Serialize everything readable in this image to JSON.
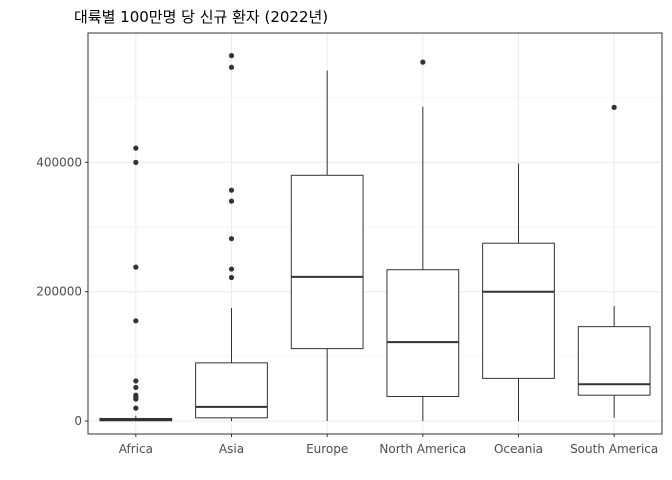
{
  "chart_data": {
    "type": "boxplot",
    "title": "대륙별 100만명 당 신규 환자 (2022년)",
    "xlabel": "",
    "ylabel": "",
    "ylim": [
      -20000,
      600000
    ],
    "yticks": [
      0,
      200000,
      400000
    ],
    "ytick_labels": [
      "0",
      "200000",
      "400000"
    ],
    "grid": true,
    "categories": [
      "Africa",
      "Asia",
      "Europe",
      "North America",
      "Oceania",
      "South America"
    ],
    "boxes": [
      {
        "category": "Africa",
        "whisker_low": 0,
        "q1": 500,
        "median": 2000,
        "q3": 4000,
        "whisker_high": 8000,
        "outliers": [
          422000,
          400000,
          238000,
          155000,
          62000,
          52000,
          40000,
          37000,
          34000,
          20000
        ]
      },
      {
        "category": "Asia",
        "whisker_low": 0,
        "q1": 5000,
        "median": 22000,
        "q3": 90000,
        "whisker_high": 175000,
        "outliers": [
          565000,
          547000,
          357000,
          340000,
          282000,
          235000,
          222000
        ]
      },
      {
        "category": "Europe",
        "whisker_low": 0,
        "q1": 112000,
        "median": 223000,
        "q3": 380000,
        "whisker_high": 542000,
        "outliers": []
      },
      {
        "category": "North America",
        "whisker_low": 0,
        "q1": 38000,
        "median": 122000,
        "q3": 234000,
        "whisker_high": 486000,
        "outliers": [
          555000
        ]
      },
      {
        "category": "Oceania",
        "whisker_low": 0,
        "q1": 66000,
        "median": 200000,
        "q3": 275000,
        "whisker_high": 398000,
        "outliers": []
      },
      {
        "category": "South America",
        "whisker_low": 5000,
        "q1": 40000,
        "median": 57000,
        "q3": 146000,
        "whisker_high": 178000,
        "outliers": [
          485000
        ]
      }
    ]
  }
}
